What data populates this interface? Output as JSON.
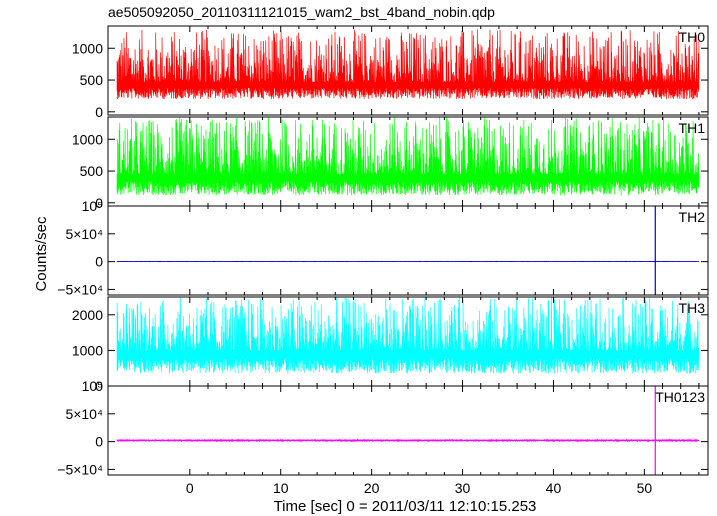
{
  "chart_data": {
    "type": "line",
    "title": "ae505092050_20110311121015_wam2_bst_4band_nobin.qdp",
    "xlabel": "Time [sec] 0 = 2011/03/11 12:10:15.253",
    "ylabel": "Counts/sec",
    "xlim": [
      -9,
      57
    ],
    "x_data_range": [
      -8,
      56
    ],
    "x_ticks": [
      "0",
      "10",
      "20",
      "30",
      "40",
      "50"
    ],
    "x_tick_values": [
      0,
      10,
      20,
      30,
      40,
      50
    ],
    "grid": false,
    "panels": [
      {
        "name": "TH0",
        "color": "#ff0000",
        "ylim": [
          -50,
          1350
        ],
        "y_ticks": [
          "0",
          "500",
          "1000"
        ],
        "y_tick_values": [
          0,
          500,
          1000
        ],
        "baseline": 470,
        "noise_low": 200,
        "noise_high": 1300,
        "spike": null
      },
      {
        "name": "TH1",
        "color": "#00ff00",
        "ylim": [
          -50,
          1350
        ],
        "y_ticks": [
          "0",
          "500",
          "1000"
        ],
        "y_tick_values": [
          0,
          500,
          1000
        ],
        "baseline": 450,
        "noise_low": 120,
        "noise_high": 1350,
        "spike": null
      },
      {
        "name": "TH2",
        "color": "#0000cc",
        "ylim": [
          -60000,
          100000
        ],
        "y_ticks": [
          "10⁵",
          "5×10⁴",
          "0",
          "−5×10⁴"
        ],
        "y_tick_values": [
          100000,
          50000,
          0,
          -50000
        ],
        "baseline": 200,
        "noise_low": 0,
        "noise_high": 400,
        "spike": {
          "x": 51.2,
          "max": 100000,
          "min": -60000
        }
      },
      {
        "name": "TH3",
        "color": "#00ffff",
        "ylim": [
          0,
          2500
        ],
        "y_ticks": [
          "0",
          "1000",
          "2000"
        ],
        "y_tick_values": [
          0,
          1000,
          2000
        ],
        "baseline": 1000,
        "noise_low": 350,
        "noise_high": 2500,
        "spike": null
      },
      {
        "name": "TH0123",
        "color": "#ff00ff",
        "ylim": [
          -60000,
          100000
        ],
        "y_ticks": [
          "10⁵",
          "5×10⁴",
          "0",
          "−5×10⁴"
        ],
        "y_tick_values": [
          100000,
          50000,
          0,
          -50000
        ],
        "baseline": 2400,
        "noise_low": 1000,
        "noise_high": 4000,
        "spike": {
          "x": 51.2,
          "max": 100000,
          "min": -60000
        }
      }
    ]
  }
}
